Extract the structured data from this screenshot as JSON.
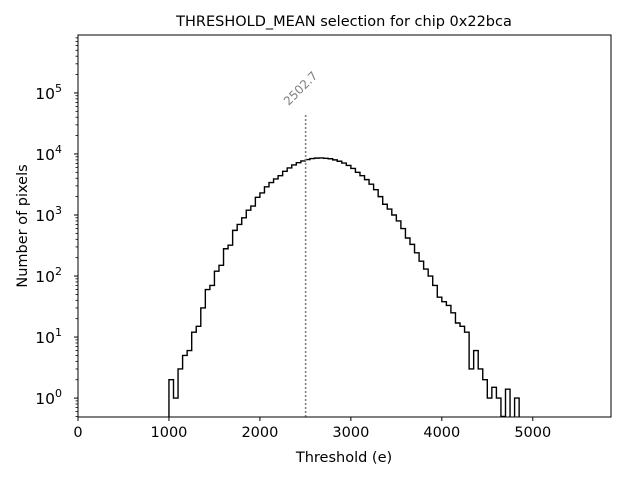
{
  "chart_data": {
    "type": "histogram",
    "title": "THRESHOLD_MEAN selection for chip 0x22bca",
    "xlabel": "Threshold (e)",
    "ylabel": "Number of pixels",
    "xlim": [
      0,
      5860
    ],
    "ylim": [
      0.49,
      890000
    ],
    "yscale": "log",
    "x_ticks": [
      0,
      1000,
      2000,
      3000,
      4000,
      5000
    ],
    "x_tick_labels": [
      "0",
      "1000",
      "2000",
      "3000",
      "4000",
      "5000"
    ],
    "y_ticks": [
      1,
      10,
      100,
      1000,
      10000,
      100000
    ],
    "y_tick_labels": [
      {
        "base": "10",
        "exp": "0"
      },
      {
        "base": "10",
        "exp": "1"
      },
      {
        "base": "10",
        "exp": "2"
      },
      {
        "base": "10",
        "exp": "3"
      },
      {
        "base": "10",
        "exp": "4"
      },
      {
        "base": "10",
        "exp": "5"
      }
    ],
    "grid": false,
    "bin_start": 1000,
    "bin_width": 50,
    "counts": [
      2,
      1,
      3,
      5,
      6,
      12,
      15,
      30,
      60,
      70,
      120,
      150,
      280,
      320,
      560,
      700,
      900,
      1200,
      1400,
      1950,
      2300,
      2900,
      3400,
      3900,
      4400,
      5200,
      5900,
      6600,
      7200,
      7700,
      8100,
      8400,
      8550,
      8600,
      8500,
      8350,
      8000,
      7600,
      7100,
      6500,
      5800,
      5000,
      4400,
      3800,
      3200,
      2600,
      2000,
      1500,
      1250,
      1000,
      800,
      600,
      420,
      330,
      240,
      175,
      130,
      100,
      70,
      45,
      38,
      33,
      25,
      17,
      15,
      12,
      3,
      6,
      3,
      2,
      1,
      1.5,
      1,
      0.5,
      1.4,
      0,
      1,
      0
    ],
    "annotation": {
      "label": "2502.7",
      "x": 2502.7,
      "color": "#808080",
      "linestyle": "dotted",
      "y_top": 45000
    }
  }
}
